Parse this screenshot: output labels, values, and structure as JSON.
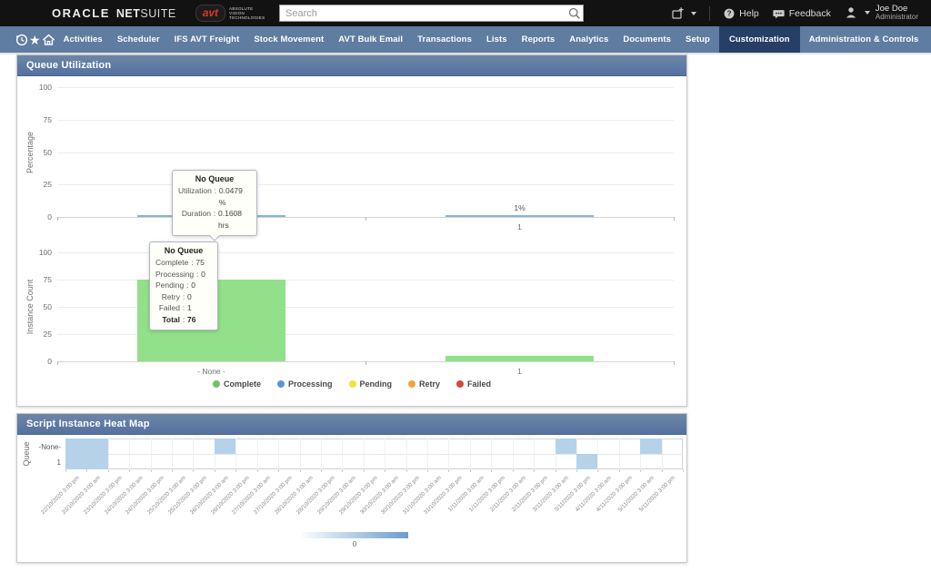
{
  "header": {
    "logo": {
      "oracle": "ORACLE",
      "netsuite_bold": "NET",
      "netsuite_light": "SUITE"
    },
    "avt": {
      "badge": "avt",
      "lines": [
        "ABSOLUTE",
        "VISION",
        "TECHNOLOGIES"
      ]
    },
    "search": {
      "placeholder": "Search"
    },
    "actions": {
      "help": "Help",
      "feedback": "Feedback",
      "user_name": "Joe Doe",
      "user_role": "Administrator"
    }
  },
  "nav": {
    "items": [
      {
        "label": "Activities",
        "active": false
      },
      {
        "label": "Scheduler",
        "active": false
      },
      {
        "label": "IFS AVT Freight",
        "active": false
      },
      {
        "label": "Stock Movement",
        "active": false
      },
      {
        "label": "AVT Bulk Email",
        "active": false
      },
      {
        "label": "Transactions",
        "active": false
      },
      {
        "label": "Lists",
        "active": false
      },
      {
        "label": "Reports",
        "active": false
      },
      {
        "label": "Analytics",
        "active": false
      },
      {
        "label": "Documents",
        "active": false
      },
      {
        "label": "Setup",
        "active": false
      },
      {
        "label": "Customization",
        "active": true
      },
      {
        "label": "Administration & Controls",
        "active": false
      },
      {
        "label": "...",
        "active": false,
        "overflow": true
      }
    ]
  },
  "queue_panel": {
    "title": "Queue Utilization",
    "legend": [
      {
        "label": "Complete",
        "color": "#72c05e"
      },
      {
        "label": "Processing",
        "color": "#5897d5"
      },
      {
        "label": "Pending",
        "color": "#efe33e"
      },
      {
        "label": "Retry",
        "color": "#f0a23c"
      },
      {
        "label": "Failed",
        "color": "#d7463e"
      }
    ]
  },
  "heatmap_panel": {
    "title": "Script Instance Heat Map"
  },
  "chart_data": [
    {
      "type": "bar",
      "title": "Queue Utilization - Percentage",
      "ylabel": "Percentage",
      "xlabel": "",
      "ylim": [
        0,
        100
      ],
      "yticks": [
        0,
        25,
        50,
        75,
        100
      ],
      "categories": [
        "- None -",
        "1"
      ],
      "values": [
        0.0479,
        1
      ],
      "unit": "%",
      "value_labels": [
        "",
        "1%"
      ],
      "bar_color": "#82b4da",
      "grid": true,
      "tooltip": {
        "title": "No Queue",
        "rows": [
          {
            "label": "Utilization",
            "value": "0.0479 %"
          },
          {
            "label": "Duration",
            "value": "0.1608 hrs"
          }
        ]
      }
    },
    {
      "type": "bar",
      "title": "Queue Utilization - Instance Count",
      "ylabel": "Instance Count",
      "xlabel": "",
      "ylim": [
        0,
        100
      ],
      "yticks": [
        0,
        25,
        50,
        75,
        100
      ],
      "categories": [
        "- None -",
        "1"
      ],
      "series": [
        {
          "name": "Complete",
          "values": [
            75,
            5
          ],
          "color": "#92e089"
        }
      ],
      "grid": true,
      "legend_position": "bottom",
      "legend": [
        "Complete",
        "Processing",
        "Pending",
        "Retry",
        "Failed"
      ],
      "tooltip": {
        "title": "No Queue",
        "rows": [
          {
            "label": "Complete",
            "value": "75"
          },
          {
            "label": "Processing",
            "value": "0"
          },
          {
            "label": "Pending",
            "value": "0"
          },
          {
            "label": "Retry",
            "value": "0"
          },
          {
            "label": "Failed",
            "value": "1"
          },
          {
            "label": "Total",
            "value": "76",
            "bold": true
          }
        ]
      }
    },
    {
      "type": "heatmap",
      "title": "Script Instance Heat Map",
      "ylabel": "Queue",
      "rows": [
        "-None-",
        "1"
      ],
      "x": [
        "22/10/2020 3:00 pm",
        "23/10/2020 3:00 am",
        "23/10/2020 3:00 pm",
        "24/10/2020 3:00 am",
        "24/10/2020 3:00 pm",
        "25/10/2020 3:00 am",
        "25/10/2020 3:00 pm",
        "26/10/2020 3:00 am",
        "26/10/2020 3:00 pm",
        "27/10/2020 3:00 am",
        "27/10/2020 3:00 pm",
        "28/10/2020 3:00 am",
        "28/10/2020 3:00 pm",
        "29/10/2020 3:00 am",
        "29/10/2020 3:00 pm",
        "30/10/2020 3:00 am",
        "30/10/2020 3:00 pm",
        "31/10/2020 3:00 am",
        "31/10/2020 3:00 pm",
        "1/11/2020 3:00 am",
        "1/11/2020 3:00 pm",
        "2/11/2020 3:00 am",
        "2/11/2020 3:00 pm",
        "3/11/2020 3:00 am",
        "3/11/2020 3:00 pm",
        "4/11/2020 3:00 am",
        "4/11/2020 3:00 pm",
        "5/11/2020 3:00 am",
        "5/11/2020 3:00 pm"
      ],
      "cells": [
        {
          "row": 0,
          "col": 0
        },
        {
          "row": 0,
          "col": 1
        },
        {
          "row": 1,
          "col": 0
        },
        {
          "row": 1,
          "col": 1
        },
        {
          "row": 0,
          "col": 7
        },
        {
          "row": 0,
          "col": 23
        },
        {
          "row": 1,
          "col": 24
        },
        {
          "row": 0,
          "col": 27
        }
      ],
      "cell_color": "#b6d2e9",
      "legend": {
        "min_label": "0",
        "gradient": [
          "#fbfdff",
          "#6b9dcd"
        ]
      }
    }
  ]
}
